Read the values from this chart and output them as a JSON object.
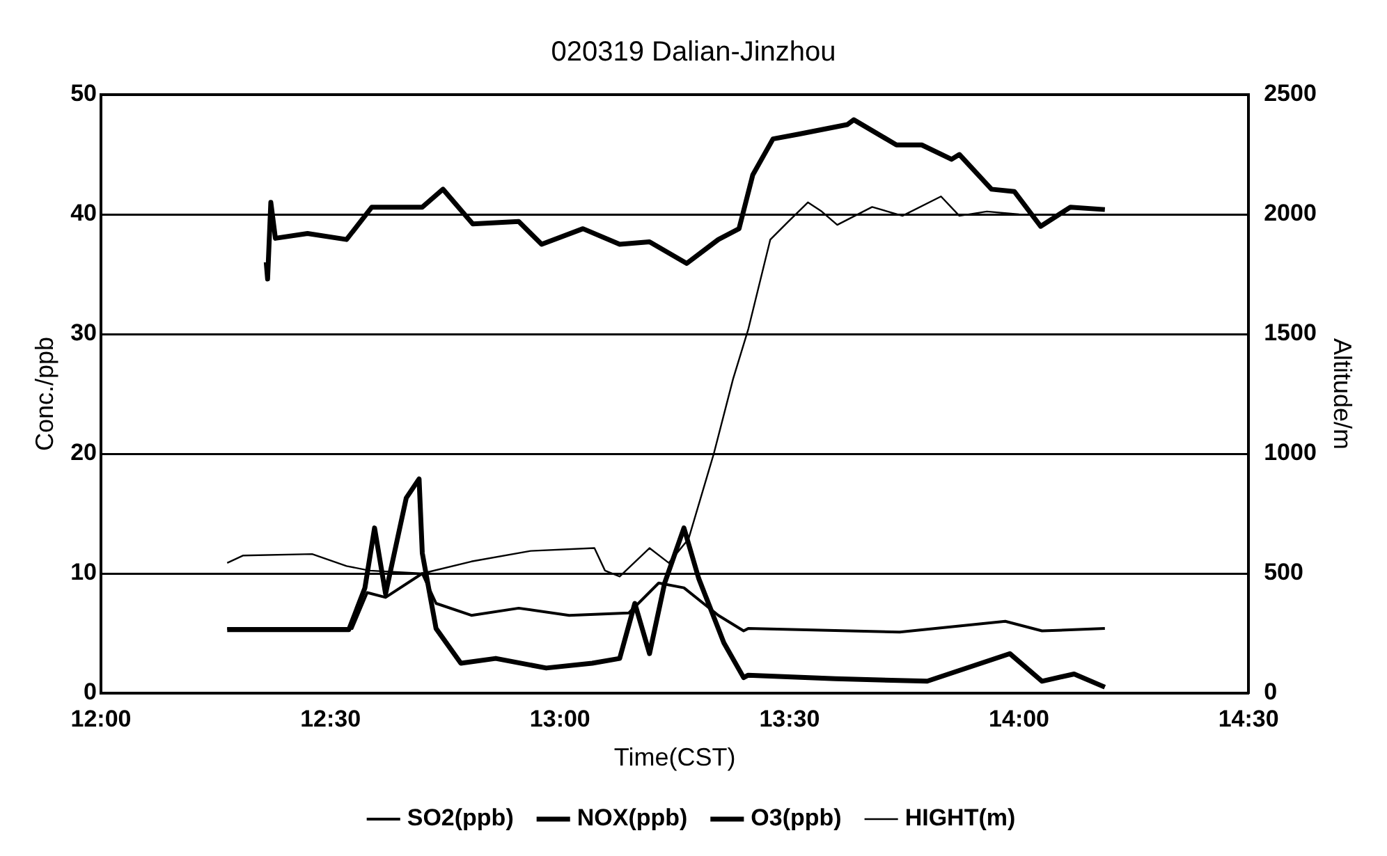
{
  "chart_data": {
    "type": "line",
    "title": "020319 Dalian-Jinzhou",
    "xlabel": "Time(CST)",
    "ylabel": "Conc./ppb",
    "y2label": "Altitude/m",
    "xlim": [
      12,
      14.5
    ],
    "xticks": [
      {
        "value": 12,
        "label": "12:00"
      },
      {
        "value": 12.5,
        "label": "12:30"
      },
      {
        "value": 13,
        "label": "13:00"
      },
      {
        "value": 13.5,
        "label": "13:30"
      },
      {
        "value": 14,
        "label": "14:00"
      },
      {
        "value": 14.5,
        "label": "14:30"
      }
    ],
    "ylim": [
      0,
      50
    ],
    "yticks": [
      0,
      10,
      20,
      30,
      40,
      50
    ],
    "y2lim": [
      0,
      2500
    ],
    "y2ticks": [
      0,
      500,
      1000,
      1500,
      2000,
      2500
    ],
    "grid": "y",
    "legend": "bottom",
    "series": [
      {
        "name": "SO2(ppb)",
        "color": "#000000",
        "x": [
          12.275,
          12.547,
          12.58,
          12.62,
          12.7,
          12.73,
          12.807,
          12.91,
          13.02,
          13.15,
          13.215,
          13.27,
          13.345,
          13.4,
          13.41,
          13.74,
          13.97,
          14.05,
          14.187
        ],
        "values": [
          5.4,
          5.4,
          8.4,
          8,
          10,
          7.5,
          6.5,
          7.1,
          6.5,
          6.7,
          9.2,
          8.8,
          6.5,
          5.2,
          5.4,
          5.1,
          6,
          5.2,
          5.4
        ]
      },
      {
        "name": "NOX(ppb)",
        "color": "#000000",
        "x": [
          12.275,
          12.54,
          12.575,
          12.596,
          12.62,
          12.665,
          12.693,
          12.7,
          12.73,
          12.784,
          12.86,
          12.97,
          13.07,
          13.13,
          13.163,
          13.195,
          13.228,
          13.27,
          13.302,
          13.357,
          13.4,
          13.41,
          13.6,
          13.8,
          13.98,
          14.05,
          14.12,
          14.187
        ],
        "values": [
          5.3,
          5.3,
          8.8,
          13.8,
          8.3,
          16.3,
          17.9,
          11.7,
          5.4,
          2.5,
          2.9,
          2.1,
          2.5,
          2.9,
          7.5,
          3.3,
          9.2,
          13.8,
          9.6,
          4.2,
          1.3,
          1.5,
          1.2,
          1,
          3.3,
          1,
          1.6,
          0.5
        ]
      },
      {
        "name": "O3(ppb)",
        "color": "#000000",
        "x": [
          12.36,
          12.363,
          12.37,
          12.38,
          12.45,
          12.535,
          12.59,
          12.7,
          12.745,
          12.81,
          12.91,
          12.96,
          13.05,
          13.13,
          13.195,
          13.276,
          13.345,
          13.39,
          13.42,
          13.464,
          13.52,
          13.626,
          13.64,
          13.733,
          13.788,
          13.853,
          13.87,
          13.94,
          13.99,
          14.047,
          14.112,
          14.187
        ],
        "values": [
          36,
          34.6,
          41,
          38,
          38.4,
          37.9,
          40.6,
          40.6,
          42.1,
          39.2,
          39.4,
          37.5,
          38.8,
          37.5,
          37.7,
          35.9,
          37.9,
          38.8,
          43.3,
          46.3,
          46.7,
          47.5,
          47.9,
          45.8,
          45.8,
          44.6,
          45,
          42.1,
          41.9,
          39,
          40.6,
          40.4
        ]
      },
      {
        "name": "HIGHT(m)",
        "color": "#000000",
        "axis": "y2",
        "x": [
          12.275,
          12.31,
          12.46,
          12.535,
          12.585,
          12.7,
          12.807,
          12.936,
          13.075,
          13.098,
          13.13,
          13.195,
          13.237,
          13.28,
          13.335,
          13.377,
          13.41,
          13.458,
          13.497,
          13.54,
          13.57,
          13.604,
          13.68,
          13.746,
          13.83,
          13.87,
          13.93,
          14
        ],
        "values": [
          544,
          575,
          581,
          531,
          512,
          500,
          550,
          594,
          606,
          512,
          487,
          606,
          544,
          644,
          1000,
          1312,
          1519,
          1894,
          1969,
          2050,
          2012,
          1956,
          2031,
          1994,
          2075,
          1994,
          2012,
          2000
        ]
      }
    ]
  }
}
